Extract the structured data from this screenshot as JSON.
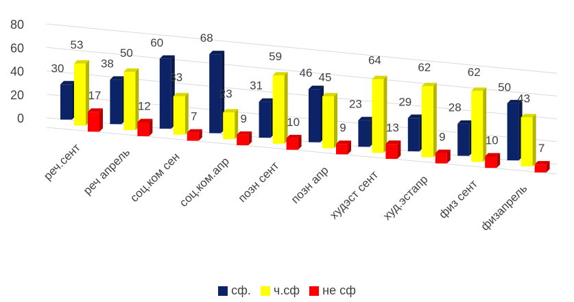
{
  "chart_data": {
    "type": "bar",
    "categories": [
      "реч.сент",
      "реч апрель",
      "соц.ком сен",
      "соц.ком.апр",
      "позн сент",
      "позн апр",
      "худэст сент",
      "худ.эстапр",
      "физ сент",
      "физапрель"
    ],
    "series": [
      {
        "name": "сф.",
        "color": "#0D2367",
        "values": [
          30,
          38,
          60,
          68,
          31,
          46,
          23,
          29,
          28,
          50
        ]
      },
      {
        "name": "ч.сф",
        "color": "#FFFF00",
        "values": [
          53,
          50,
          33,
          23,
          59,
          45,
          64,
          62,
          62,
          43
        ]
      },
      {
        "name": "не сф",
        "color": "#FF0000",
        "values": [
          17,
          12,
          7,
          9,
          10,
          9,
          13,
          9,
          10,
          7
        ]
      }
    ],
    "y_ticks": [
      "80",
      "60",
      "40",
      "20",
      "0"
    ],
    "ylim": [
      0,
      80
    ],
    "grid": true,
    "legend_position": "bottom",
    "style": "3d-perspective"
  }
}
